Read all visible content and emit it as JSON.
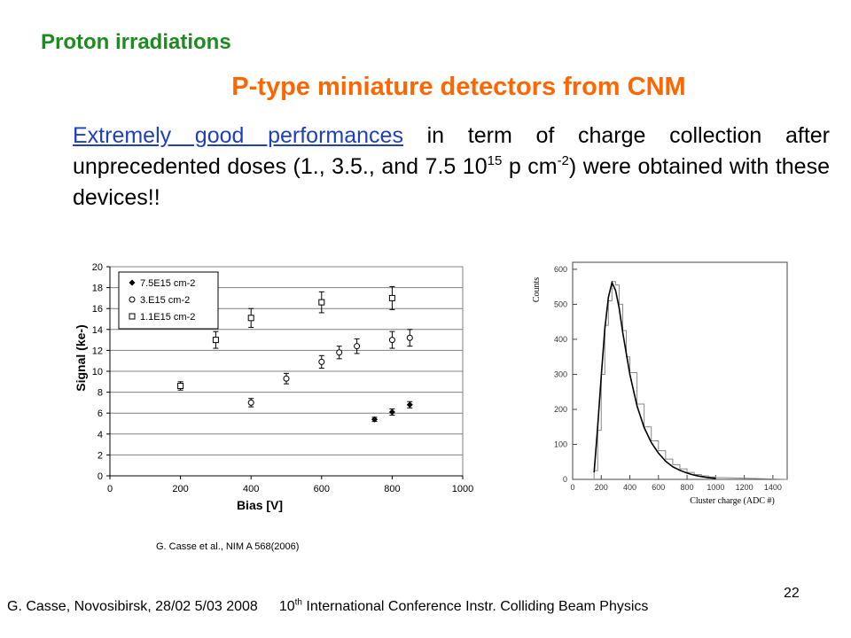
{
  "slide": {
    "heading": "Proton irradiations",
    "subtitle": "P-type miniature detectors from CNM",
    "body": {
      "link_text": "Extremely good performances",
      "text_1": " in term of charge collection after unprecedented  doses (1., 3.5., and 7.5 10",
      "sup_1": "15",
      "text_2": " p cm",
      "sup_2": "-2",
      "text_3": ") were obtained with these devices!!"
    },
    "citation": "G. Casse et al., NIM A 568(2006)",
    "footer_author": "G. Casse, Novosibirsk, 28/02 5/03 2008",
    "footer_conf_prefix": "10",
    "footer_conf_sup": "th",
    "footer_conf_rest": " International Conference Instr. Colliding Beam Physics",
    "page_number": "22"
  },
  "chart_data": [
    {
      "type": "scatter",
      "xlabel": "Bias [V]",
      "ylabel": "Signal (ke-)",
      "xlim": [
        0,
        1000
      ],
      "ylim": [
        0,
        20
      ],
      "xticks": [
        0,
        200,
        400,
        600,
        800,
        1000
      ],
      "yticks": [
        0,
        2,
        4,
        6,
        8,
        10,
        12,
        14,
        16,
        18,
        20
      ],
      "grid": "horizontal",
      "legend_position": "top-left",
      "series": [
        {
          "name": "7.5E15 cm-2",
          "marker": "diamond-filled",
          "x": [
            750,
            800,
            850
          ],
          "y": [
            5.4,
            6.1,
            6.8
          ],
          "err": [
            0.2,
            0.3,
            0.3
          ]
        },
        {
          "name": "3.E15 cm-2",
          "marker": "circle-open",
          "x": [
            400,
            500,
            600,
            650,
            700,
            800,
            850
          ],
          "y": [
            7.0,
            9.3,
            10.9,
            11.8,
            12.4,
            13.0,
            13.2
          ],
          "err": [
            0.4,
            0.5,
            0.6,
            0.6,
            0.7,
            0.8,
            0.8
          ]
        },
        {
          "name": "1.1E15 cm-2",
          "marker": "square-open",
          "x": [
            200,
            300,
            400,
            600,
            800
          ],
          "y": [
            8.6,
            13.0,
            15.1,
            16.6,
            17.0
          ],
          "err": [
            0.4,
            0.8,
            0.9,
            1.0,
            1.1
          ]
        }
      ]
    },
    {
      "type": "line",
      "subtype": "histogram-with-fit",
      "xlabel": "Cluster charge (ADC #)",
      "ylabel": "Counts",
      "xlim": [
        0,
        1500
      ],
      "ylim": [
        0,
        620
      ],
      "xticks": [
        0,
        200,
        400,
        600,
        800,
        1000,
        1200,
        1400
      ],
      "yticks": [
        0,
        100,
        200,
        300,
        400,
        500,
        600
      ],
      "peak": {
        "x": 280,
        "y": 562
      },
      "x": [
        150,
        175,
        200,
        225,
        250,
        275,
        300,
        325,
        350,
        375,
        400,
        450,
        500,
        550,
        600,
        650,
        700,
        750,
        800,
        850,
        900,
        950,
        1000
      ],
      "fit_y": [
        20,
        150,
        295,
        430,
        520,
        562,
        540,
        490,
        420,
        360,
        300,
        210,
        148,
        105,
        75,
        52,
        36,
        26,
        18,
        12,
        8,
        5,
        3
      ],
      "hist_y": [
        25,
        140,
        300,
        440,
        510,
        565,
        555,
        500,
        425,
        350,
        305,
        215,
        150,
        110,
        82,
        58,
        42,
        30,
        20,
        14,
        10,
        7,
        5
      ]
    }
  ]
}
